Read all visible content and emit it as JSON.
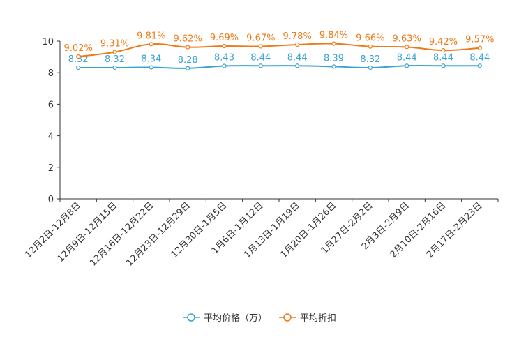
{
  "chart_data": {
    "type": "line",
    "title": "",
    "xlabel": "",
    "ylabel": "",
    "ylim": [
      0,
      10
    ],
    "yticks": [
      0,
      2,
      4,
      6,
      8,
      10
    ],
    "categories": [
      "12月2日-12月8日",
      "12月9日-12月15日",
      "12月16日-12月22日",
      "12月23日-12月29日",
      "12月30日-1月5日",
      "1月6日-1月12日",
      "1月13日-1月19日",
      "1月20日-1月26日",
      "1月27日-2月2日",
      "2月3日-2月9日",
      "2月10日-2月16日",
      "2月17日-2月23日"
    ],
    "series": [
      {
        "name": "平均价格（万）",
        "color": "#3ba3d0",
        "values": [
          8.32,
          8.32,
          8.34,
          8.28,
          8.43,
          8.44,
          8.44,
          8.39,
          8.32,
          8.44,
          8.44,
          8.44
        ],
        "labels": [
          "8.32",
          "8.32",
          "8.34",
          "8.28",
          "8.43",
          "8.44",
          "8.44",
          "8.39",
          "8.32",
          "8.44",
          "8.44",
          "8.44"
        ]
      },
      {
        "name": "平均折扣",
        "color": "#f07a18",
        "values": [
          9.02,
          9.31,
          9.81,
          9.62,
          9.69,
          9.67,
          9.78,
          9.84,
          9.66,
          9.63,
          9.42,
          9.57
        ],
        "labels": [
          "9.02%",
          "9.31%",
          "9.81%",
          "9.62%",
          "9.69%",
          "9.67%",
          "9.78%",
          "9.84%",
          "9.66%",
          "9.63%",
          "9.42%",
          "9.57%"
        ]
      }
    ],
    "legend_position": "bottom-center"
  }
}
